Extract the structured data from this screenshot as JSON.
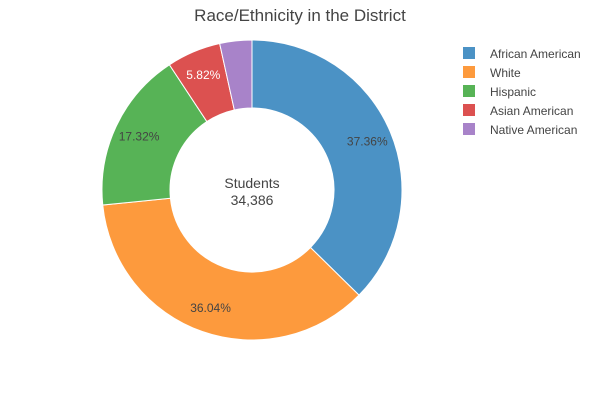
{
  "chart_data": {
    "type": "pie",
    "variant": "donut",
    "title": "Race/Ethnicity in the District",
    "center_label": "Students",
    "center_value": "34,386",
    "legend_position": "top-right",
    "direction": "clockwise",
    "start": "top",
    "categories": [
      "African American",
      "White",
      "Hispanic",
      "Asian American",
      "Native American"
    ],
    "values": [
      37.36,
      36.04,
      17.32,
      5.82,
      3.46
    ],
    "labels": [
      "37.36%",
      "36.04%",
      "17.32%",
      "5.82%",
      ""
    ],
    "colors": [
      "#4b92c5",
      "#fd9a3d",
      "#57b356",
      "#dc5150",
      "#a883c9"
    ],
    "label_colors": [
      "#444444",
      "#444444",
      "#444444",
      "#ffffff",
      "#444444"
    ]
  }
}
